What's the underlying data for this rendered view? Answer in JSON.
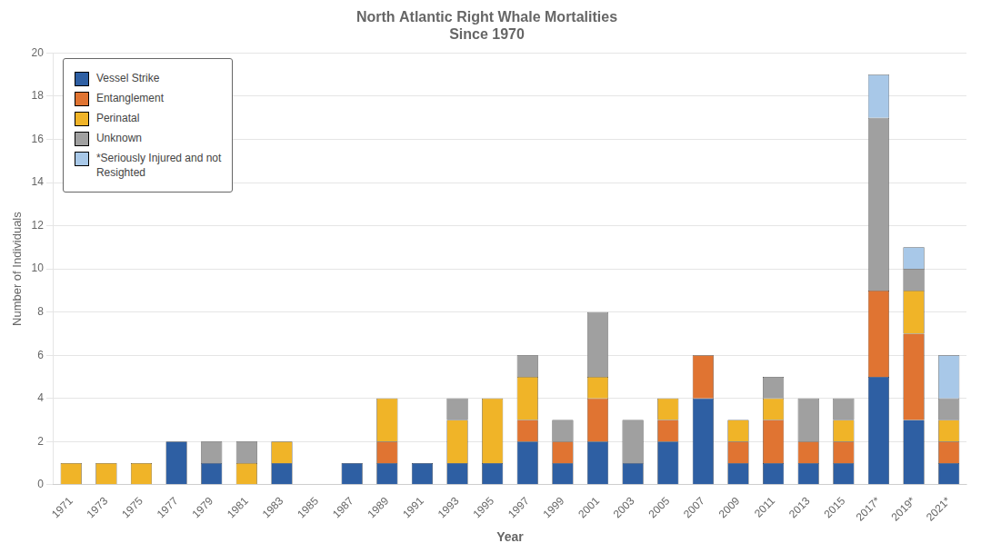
{
  "chart_data": {
    "type": "bar",
    "stacked": true,
    "title": "North Atlantic Right Whale Mortalities\nSince 1970",
    "xlabel": "Year",
    "ylabel": "Number of Individuals",
    "categories": [
      "1971",
      "1973",
      "1975",
      "1977",
      "1979",
      "1981",
      "1983",
      "1985",
      "1987",
      "1989",
      "1991",
      "1993",
      "1995",
      "1997",
      "1999",
      "2001",
      "2003",
      "2005",
      "2007",
      "2009",
      "2011",
      "2013",
      "2015",
      "2017*",
      "2019*",
      "2021*"
    ],
    "series": [
      {
        "name": "Vessel Strike",
        "color": "#2E5FA3",
        "values": [
          0,
          0,
          0,
          2,
          1,
          0,
          1,
          0,
          1,
          1,
          1,
          1,
          1,
          2,
          1,
          2,
          1,
          2,
          4,
          1,
          1,
          1,
          1,
          5,
          3,
          1
        ]
      },
      {
        "name": "Entanglement",
        "color": "#E07432",
        "values": [
          0,
          0,
          0,
          0,
          0,
          0,
          0,
          0,
          0,
          1,
          0,
          0,
          0,
          1,
          1,
          2,
          0,
          1,
          2,
          1,
          2,
          1,
          1,
          4,
          4,
          1
        ]
      },
      {
        "name": "Perinatal",
        "color": "#F0B428",
        "values": [
          1,
          1,
          1,
          0,
          0,
          1,
          1,
          0,
          0,
          2,
          0,
          2,
          3,
          2,
          0,
          1,
          0,
          1,
          0,
          1,
          1,
          0,
          1,
          0,
          2,
          1
        ]
      },
      {
        "name": "Unknown",
        "color": "#A0A0A0",
        "values": [
          0,
          0,
          0,
          0,
          1,
          1,
          0,
          0,
          0,
          0,
          0,
          1,
          0,
          1,
          1,
          3,
          2,
          0,
          0,
          0,
          1,
          2,
          1,
          8,
          1,
          1
        ]
      },
      {
        "name": "*Seriously Injured and not\nResighted",
        "color": "#A8C8E8",
        "values": [
          0,
          0,
          0,
          0,
          0,
          0,
          0,
          0,
          0,
          0,
          0,
          0,
          0,
          0,
          0,
          0,
          0,
          0,
          0,
          0,
          0,
          0,
          0,
          2,
          1,
          2
        ]
      }
    ],
    "ylim": [
      0,
      20
    ],
    "yticks": [
      0,
      2,
      4,
      6,
      8,
      10,
      12,
      14,
      16,
      18,
      20
    ],
    "grid": true,
    "legend": "upper left"
  }
}
